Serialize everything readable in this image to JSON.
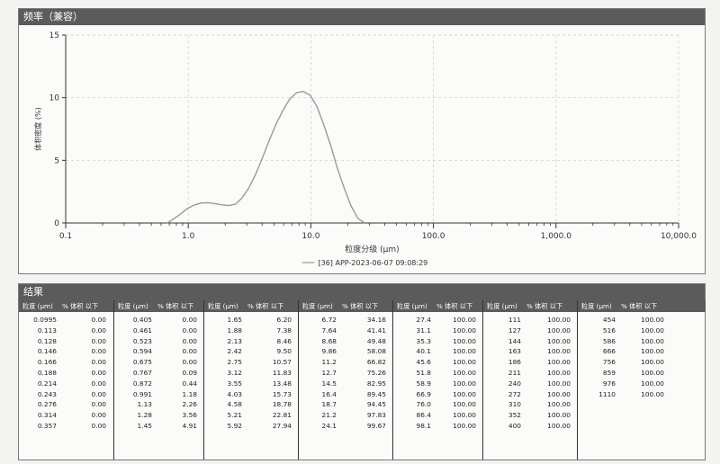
{
  "top_panel": {
    "title": "频率（兼容）"
  },
  "chart_data": {
    "type": "line",
    "title": "",
    "xlabel": "粒度分级 (μm)",
    "ylabel": "体积密度 (%)",
    "x_scale": "log",
    "xlim": [
      0.1,
      10000
    ],
    "ylim": [
      0,
      15
    ],
    "x_ticks": [
      0.1,
      1,
      10,
      100,
      1000,
      10000
    ],
    "x_tick_labels": [
      "0.1",
      "1.0",
      "10.0",
      "100.0",
      "1,000.0",
      "10,000.0"
    ],
    "y_ticks": [
      0,
      5,
      10,
      15
    ],
    "y_tick_labels": [
      "0",
      "5",
      "10",
      "15"
    ],
    "grid": true,
    "legend_position": "bottom-center",
    "series": [
      {
        "name": "[36] APP-2023-06-07 09:08:29",
        "color": "#9a9a9a",
        "x": [
          0.675,
          0.767,
          0.872,
          0.991,
          1.13,
          1.28,
          1.45,
          1.65,
          1.88,
          2.13,
          2.42,
          2.75,
          3.12,
          3.55,
          4.03,
          4.58,
          5.21,
          5.92,
          6.72,
          7.64,
          8.68,
          9.86,
          11.2,
          12.7,
          14.5,
          16.4,
          18.7,
          21.2,
          24.1,
          27.4
        ],
        "y": [
          0,
          0.35,
          0.74,
          1.18,
          1.45,
          1.6,
          1.62,
          1.55,
          1.45,
          1.4,
          1.5,
          2.0,
          2.8,
          3.9,
          5.2,
          6.6,
          7.9,
          9.0,
          9.9,
          10.4,
          10.5,
          10.2,
          9.3,
          7.9,
          6.2,
          4.4,
          2.8,
          1.4,
          0.4,
          0
        ]
      }
    ]
  },
  "results": {
    "title": "结果",
    "col_header_size": "粒度 (μm)",
    "col_header_pct": "% 体积 以下",
    "columns": [
      {
        "rows": [
          [
            "0.0995",
            "0.00"
          ],
          [
            "0.113",
            "0.00"
          ],
          [
            "0.128",
            "0.00"
          ],
          [
            "0.146",
            "0.00"
          ],
          [
            "0.166",
            "0.00"
          ],
          [
            "0.188",
            "0.00"
          ],
          [
            "0.214",
            "0.00"
          ],
          [
            "0.243",
            "0.00"
          ],
          [
            "0.276",
            "0.00"
          ],
          [
            "0.314",
            "0.00"
          ],
          [
            "0.357",
            "0.00"
          ]
        ]
      },
      {
        "rows": [
          [
            "0.405",
            "0.00"
          ],
          [
            "0.461",
            "0.00"
          ],
          [
            "0.523",
            "0.00"
          ],
          [
            "0.594",
            "0.00"
          ],
          [
            "0.675",
            "0.00"
          ],
          [
            "0.767",
            "0.09"
          ],
          [
            "0.872",
            "0.44"
          ],
          [
            "0.991",
            "1.18"
          ],
          [
            "1.13",
            "2.26"
          ],
          [
            "1.28",
            "3.56"
          ],
          [
            "1.45",
            "4.91"
          ]
        ]
      },
      {
        "rows": [
          [
            "1.65",
            "6.20"
          ],
          [
            "1.88",
            "7.38"
          ],
          [
            "2.13",
            "8.46"
          ],
          [
            "2.42",
            "9.50"
          ],
          [
            "2.75",
            "10.57"
          ],
          [
            "3.12",
            "11.83"
          ],
          [
            "3.55",
            "13.48"
          ],
          [
            "4.03",
            "15.73"
          ],
          [
            "4.58",
            "18.78"
          ],
          [
            "5.21",
            "22.81"
          ],
          [
            "5.92",
            "27.94"
          ]
        ]
      },
      {
        "rows": [
          [
            "6.72",
            "34.16"
          ],
          [
            "7.64",
            "41.41"
          ],
          [
            "8.68",
            "49.48"
          ],
          [
            "9.86",
            "58.08"
          ],
          [
            "11.2",
            "66.82"
          ],
          [
            "12.7",
            "75.26"
          ],
          [
            "14.5",
            "82.95"
          ],
          [
            "16.4",
            "89.45"
          ],
          [
            "18.7",
            "94.45"
          ],
          [
            "21.2",
            "97.83"
          ],
          [
            "24.1",
            "99.67"
          ]
        ]
      },
      {
        "rows": [
          [
            "27.4",
            "100.00"
          ],
          [
            "31.1",
            "100.00"
          ],
          [
            "35.3",
            "100.00"
          ],
          [
            "40.1",
            "100.00"
          ],
          [
            "45.6",
            "100.00"
          ],
          [
            "51.8",
            "100.00"
          ],
          [
            "58.9",
            "100.00"
          ],
          [
            "66.9",
            "100.00"
          ],
          [
            "76.0",
            "100.00"
          ],
          [
            "86.4",
            "100.00"
          ],
          [
            "98.1",
            "100.00"
          ]
        ]
      },
      {
        "rows": [
          [
            "111",
            "100.00"
          ],
          [
            "127",
            "100.00"
          ],
          [
            "144",
            "100.00"
          ],
          [
            "163",
            "100.00"
          ],
          [
            "186",
            "100.00"
          ],
          [
            "211",
            "100.00"
          ],
          [
            "240",
            "100.00"
          ],
          [
            "272",
            "100.00"
          ],
          [
            "310",
            "100.00"
          ],
          [
            "352",
            "100.00"
          ],
          [
            "400",
            "100.00"
          ]
        ]
      },
      {
        "rows": [
          [
            "454",
            "100.00"
          ],
          [
            "516",
            "100.00"
          ],
          [
            "586",
            "100.00"
          ],
          [
            "666",
            "100.00"
          ],
          [
            "756",
            "100.00"
          ],
          [
            "859",
            "100.00"
          ],
          [
            "976",
            "100.00"
          ],
          [
            "1110",
            "100.00"
          ]
        ]
      }
    ]
  }
}
